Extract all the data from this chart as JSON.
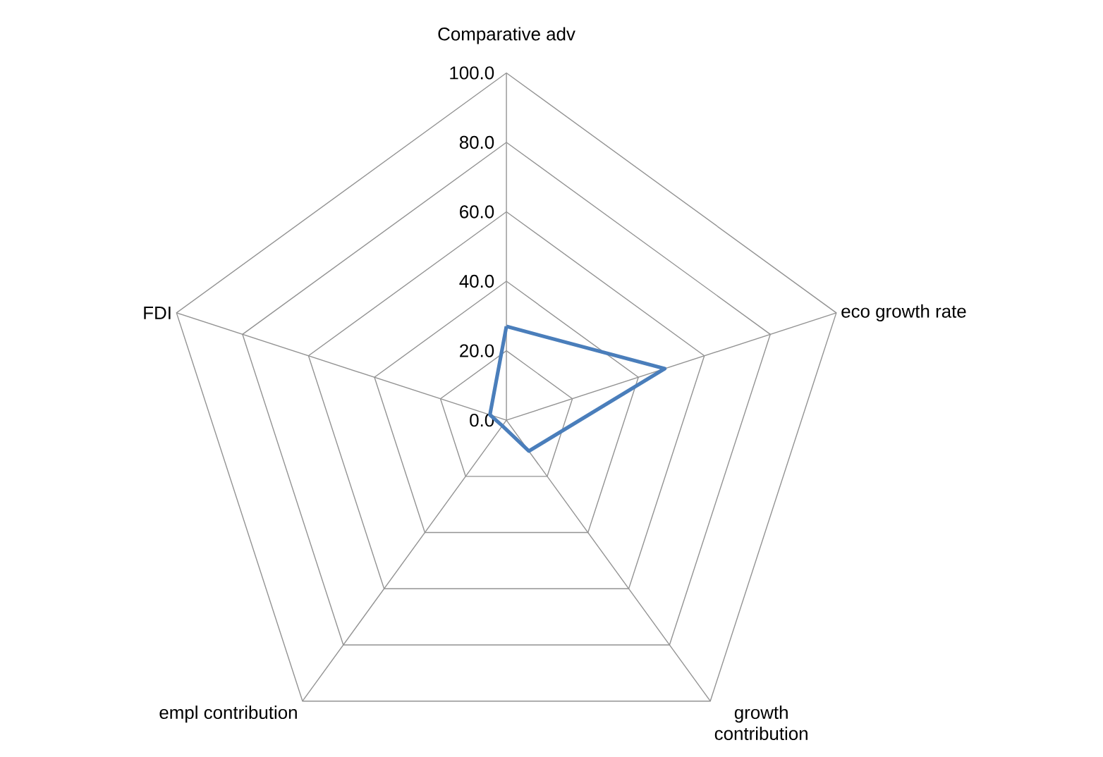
{
  "chart_data": {
    "type": "radar",
    "categories": [
      "Comparative adv",
      "eco growth rate",
      "growth contribution",
      "empl contribution",
      "FDI"
    ],
    "series": [
      {
        "color": "#4a7ebb",
        "values": [
          27,
          48,
          11,
          2,
          5
        ]
      }
    ],
    "ylim": [
      0,
      100
    ],
    "yticks": [
      {
        "value": 0,
        "label": "0.0"
      },
      {
        "value": 20,
        "label": "20.0"
      },
      {
        "value": 40,
        "label": "40.0"
      },
      {
        "value": 60,
        "label": "60.0"
      },
      {
        "value": 80,
        "label": "80.0"
      },
      {
        "value": 100,
        "label": "100.0"
      }
    ],
    "grid": true,
    "marker": "none",
    "line_style": "solid"
  }
}
